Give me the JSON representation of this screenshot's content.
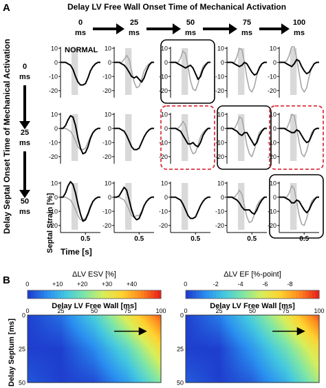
{
  "panelA": {
    "label": "A",
    "top_title": "Delay LV Free Wall Onset Time of Mechanical Activation",
    "side_title": "Delay Septal Onset Time of Mechanical Activation",
    "col_labels": [
      {
        "value": "0",
        "unit": "ms"
      },
      {
        "value": "25",
        "unit": "ms"
      },
      {
        "value": "50",
        "unit": "ms"
      },
      {
        "value": "75",
        "unit": "ms"
      },
      {
        "value": "100",
        "unit": "ms"
      }
    ],
    "row_labels": [
      {
        "value": "0",
        "unit": "ms"
      },
      {
        "value": "25",
        "unit": "ms"
      },
      {
        "value": "50",
        "unit": "ms"
      }
    ],
    "normal_label": "NORMAL",
    "ylabel": "Septal Strain [%]",
    "xlabel": "Time [s]",
    "y_ticks": [
      "10",
      "0",
      "-10",
      "-20"
    ],
    "x_ticks": [
      "0.5"
    ],
    "colors": {
      "delayed": "#000000",
      "normal": "#a6a6a6",
      "shade": "#d9d9d9",
      "box_black": "#000000",
      "box_red": "#d9333f"
    }
  },
  "panelB": {
    "label": "B",
    "axis_title": "Delay LV Free Wall [ms]",
    "row_title": "Delay Septum [ms]",
    "x_ticks": [
      "0",
      "25",
      "50",
      "75",
      "100"
    ],
    "y_ticks": [
      "0",
      "25",
      "50"
    ],
    "left_colorbar": {
      "title": "ΔLV ESV [%]",
      "ticks": [
        "0",
        "+10",
        "+20",
        "+30",
        "+40"
      ]
    },
    "right_colorbar": {
      "title": "ΔLV EF [%-point]",
      "ticks": [
        "0",
        "-2",
        "-4",
        "-6",
        "-8"
      ]
    },
    "colormap": [
      "#1f3fcf",
      "#2a8ff0",
      "#44c8e0",
      "#7fe6a6",
      "#d8ee5a",
      "#ffd230",
      "#ff8a1e",
      "#e8251b"
    ]
  },
  "chart_data": [
    {
      "type": "line",
      "title": "Delay LV Free Wall Onset Time of Mechanical Activation",
      "xlabel": "Time [s]",
      "ylabel": "Septal Strain [%]",
      "ylim": [
        -25,
        12
      ],
      "xlim": [
        0,
        0.8
      ],
      "grid": false,
      "rows_delay_septum_ms": [
        0,
        25,
        50
      ],
      "cols_delay_lvfw_ms": [
        0,
        25,
        50,
        75,
        100
      ],
      "boxed_cells": {
        "black": [
          [
            0,
            2
          ],
          [
            1,
            3
          ],
          [
            2,
            4
          ]
        ],
        "red_dashed": [
          [
            1,
            2
          ],
          [
            1,
            4
          ]
        ]
      },
      "x": [
        0.0,
        0.05,
        0.1,
        0.15,
        0.2,
        0.25,
        0.3,
        0.35,
        0.4,
        0.45,
        0.5,
        0.55,
        0.6,
        0.65,
        0.7,
        0.75,
        0.8
      ],
      "panels": [
        {
          "row": 0,
          "col": 0,
          "series": [
            {
              "values": [
                0,
                0,
                0,
                -1,
                -2,
                -5,
                -10,
                -14,
                -16,
                -16,
                -15,
                -11,
                -6,
                -3,
                -1,
                0,
                0
              ]
            }
          ],
          "shade": [
            0.22,
            0.35
          ]
        },
        {
          "row": 0,
          "col": 1,
          "series": [
            {
              "values": [
                0,
                0,
                0,
                -1,
                -2,
                -4,
                -7,
                -10,
                -11,
                -10,
                -12,
                -14,
                -11,
                -6,
                -2,
                0,
                0
              ]
            },
            {
              "values": [
                0,
                0,
                0,
                0,
                2,
                5,
                2,
                -6,
                -14,
                -18,
                -17,
                -12,
                -6,
                -3,
                -1,
                0,
                0
              ]
            }
          ],
          "shade": [
            0.22,
            0.35
          ]
        },
        {
          "row": 0,
          "col": 2,
          "series": [
            {
              "values": [
                0,
                0,
                0,
                -1,
                -2,
                -3,
                -4,
                -3,
                -2,
                -4,
                -8,
                -12,
                -10,
                -5,
                -2,
                0,
                0
              ]
            },
            {
              "values": [
                0,
                0,
                0,
                0,
                3,
                8,
                6,
                -3,
                -13,
                -19,
                -20,
                -15,
                -8,
                -3,
                -1,
                0,
                0
              ]
            }
          ],
          "shade": [
            0.22,
            0.35
          ]
        },
        {
          "row": 0,
          "col": 3,
          "series": [
            {
              "values": [
                0,
                0,
                0,
                -1,
                -2,
                -3,
                -2,
                0,
                -1,
                -4,
                -7,
                -9,
                -8,
                -4,
                -1,
                0,
                0
              ]
            },
            {
              "values": [
                0,
                0,
                0,
                0,
                4,
                10,
                9,
                0,
                -11,
                -19,
                -21,
                -17,
                -9,
                -3,
                -1,
                0,
                0
              ]
            }
          ],
          "shade": [
            0.22,
            0.35
          ]
        },
        {
          "row": 0,
          "col": 4,
          "series": [
            {
              "values": [
                0,
                0,
                0,
                -1,
                -2,
                -3,
                -1,
                2,
                1,
                -3,
                -6,
                -8,
                -7,
                -4,
                -1,
                0,
                0
              ]
            },
            {
              "values": [
                0,
                0,
                0,
                1,
                5,
                11,
                11,
                3,
                -8,
                -18,
                -21,
                -18,
                -10,
                -4,
                -1,
                0,
                0
              ]
            }
          ],
          "shade": [
            0.22,
            0.35
          ]
        },
        {
          "row": 1,
          "col": 0,
          "series": [
            {
              "values": [
                0,
                0,
                2,
                6,
                9,
                8,
                2,
                -7,
                -14,
                -18,
                -17,
                -13,
                -7,
                -3,
                -1,
                0,
                0
              ]
            },
            {
              "values": [
                0,
                0,
                0,
                -1,
                -2,
                -5,
                -9,
                -13,
                -15,
                -15,
                -14,
                -10,
                -6,
                -3,
                -1,
                0,
                0
              ]
            }
          ],
          "shade": [
            0.22,
            0.35
          ]
        },
        {
          "row": 1,
          "col": 1,
          "series": [
            {
              "values": [
                0,
                0,
                0,
                -1,
                -2,
                -5,
                -9,
                -13,
                -15,
                -15,
                -14,
                -10,
                -6,
                -3,
                -1,
                0,
                0
              ]
            }
          ],
          "shade": [
            0.22,
            0.35
          ]
        },
        {
          "row": 1,
          "col": 2,
          "series": [
            {
              "values": [
                0,
                0,
                0,
                -1,
                -2,
                -5,
                -8,
                -11,
                -11,
                -10,
                -12,
                -13,
                -10,
                -5,
                -2,
                0,
                0
              ]
            },
            {
              "values": [
                0,
                0,
                0,
                0,
                2,
                5,
                2,
                -6,
                -14,
                -18,
                -17,
                -12,
                -6,
                -3,
                -1,
                0,
                0
              ]
            }
          ],
          "shade": [
            0.22,
            0.35
          ]
        },
        {
          "row": 1,
          "col": 3,
          "series": [
            {
              "values": [
                0,
                0,
                0,
                -1,
                -2,
                -4,
                -5,
                -3,
                -3,
                -6,
                -9,
                -12,
                -10,
                -5,
                -2,
                0,
                0
              ]
            },
            {
              "values": [
                0,
                0,
                0,
                0,
                3,
                8,
                7,
                -2,
                -12,
                -18,
                -20,
                -15,
                -8,
                -3,
                -1,
                0,
                0
              ]
            }
          ],
          "shade": [
            0.22,
            0.35
          ]
        },
        {
          "row": 1,
          "col": 4,
          "series": [
            {
              "values": [
                0,
                0,
                0,
                -1,
                -2,
                -3,
                -3,
                -1,
                -2,
                -5,
                -8,
                -10,
                -9,
                -5,
                -1,
                0,
                0
              ]
            },
            {
              "values": [
                0,
                0,
                0,
                0,
                4,
                10,
                9,
                0,
                -10,
                -18,
                -20,
                -16,
                -9,
                -3,
                -1,
                0,
                0
              ]
            }
          ],
          "shade": [
            0.22,
            0.35
          ]
        },
        {
          "row": 2,
          "col": 0,
          "series": [
            {
              "values": [
                0,
                0,
                3,
                8,
                11,
                9,
                3,
                -5,
                -12,
                -17,
                -16,
                -12,
                -7,
                -3,
                -1,
                0,
                0
              ]
            },
            {
              "values": [
                0,
                0,
                0,
                -1,
                -2,
                -5,
                -9,
                -13,
                -16,
                -16,
                -15,
                -11,
                -6,
                -3,
                -1,
                0,
                0
              ]
            }
          ],
          "shade": [
            0.22,
            0.35
          ]
        },
        {
          "row": 2,
          "col": 1,
          "series": [
            {
              "values": [
                0,
                0,
                1,
                4,
                7,
                5,
                -2,
                -9,
                -14,
                -16,
                -15,
                -11,
                -6,
                -3,
                -1,
                0,
                0
              ]
            },
            {
              "values": [
                0,
                0,
                0,
                -1,
                -2,
                -5,
                -9,
                -13,
                -14,
                -13,
                -13,
                -10,
                -6,
                -3,
                -1,
                0,
                0
              ]
            }
          ],
          "shade": [
            0.22,
            0.35
          ]
        },
        {
          "row": 2,
          "col": 2,
          "series": [
            {
              "values": [
                0,
                0,
                0,
                -1,
                -2,
                -5,
                -9,
                -13,
                -15,
                -15,
                -14,
                -10,
                -6,
                -3,
                -1,
                0,
                0
              ]
            }
          ],
          "shade": [
            0.22,
            0.35
          ]
        },
        {
          "row": 2,
          "col": 3,
          "series": [
            {
              "values": [
                0,
                0,
                0,
                -1,
                -2,
                -4,
                -7,
                -9,
                -9,
                -9,
                -11,
                -12,
                -9,
                -5,
                -2,
                0,
                0
              ]
            },
            {
              "values": [
                0,
                0,
                0,
                0,
                2,
                5,
                2,
                -6,
                -14,
                -18,
                -17,
                -12,
                -6,
                -3,
                -1,
                0,
                0
              ]
            }
          ],
          "shade": [
            0.22,
            0.35
          ]
        },
        {
          "row": 2,
          "col": 4,
          "series": [
            {
              "values": [
                0,
                0,
                0,
                -1,
                -2,
                -4,
                -4,
                -2,
                -3,
                -6,
                -9,
                -11,
                -9,
                -5,
                -2,
                0,
                0
              ]
            },
            {
              "values": [
                0,
                0,
                0,
                0,
                3,
                8,
                6,
                -3,
                -13,
                -19,
                -20,
                -15,
                -8,
                -3,
                -1,
                0,
                0
              ]
            }
          ],
          "shade": [
            0.22,
            0.35
          ]
        }
      ]
    },
    {
      "type": "heatmap",
      "title": "ΔLV ESV [%]",
      "xlabel": "Delay LV Free Wall [ms]",
      "ylabel": "Delay Septum [ms]",
      "xlim": [
        0,
        100
      ],
      "ylim": [
        0,
        50
      ],
      "x": [
        0,
        25,
        50,
        75,
        100
      ],
      "y": [
        0,
        25,
        50
      ],
      "z": [
        [
          0,
          4,
          14,
          28,
          42
        ],
        [
          0,
          0,
          6,
          16,
          30
        ],
        [
          2,
          0,
          1,
          8,
          20
        ]
      ],
      "zlim": [
        0,
        45
      ],
      "arrow": {
        "from": [
          65,
          12
        ],
        "to": [
          88,
          12
        ]
      }
    },
    {
      "type": "heatmap",
      "title": "ΔLV EF [%-point]",
      "xlabel": "Delay LV Free Wall [ms]",
      "ylabel": "",
      "xlim": [
        0,
        100
      ],
      "ylim": [
        0,
        50
      ],
      "x": [
        0,
        25,
        50,
        75,
        100
      ],
      "y": [
        0,
        25,
        50
      ],
      "z": [
        [
          0,
          -1,
          -3,
          -5.5,
          -8.5
        ],
        [
          0,
          0,
          -1.5,
          -3.5,
          -6
        ],
        [
          -0.5,
          0,
          -0.5,
          -2,
          -4.5
        ]
      ],
      "zlim": [
        0,
        -9
      ],
      "arrow": {
        "from": [
          65,
          12
        ],
        "to": [
          88,
          12
        ]
      }
    }
  ]
}
